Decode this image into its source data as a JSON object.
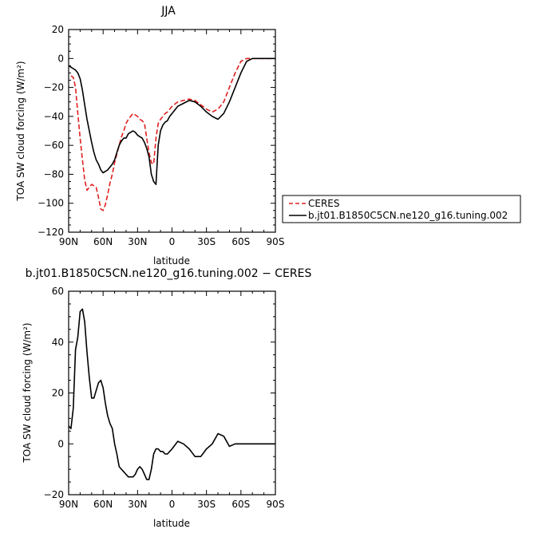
{
  "chart_data": [
    {
      "type": "line",
      "title": "JJA",
      "xlabel": "latitude",
      "ylabel": "TOA SW cloud forcing (W/m²)",
      "ylim": [
        -120,
        20
      ],
      "xlim": [
        90,
        -90
      ],
      "x_ticks": [
        90,
        60,
        30,
        0,
        -30,
        -60,
        -90
      ],
      "x_tick_labels": [
        "90N",
        "60N",
        "30N",
        "0",
        "30S",
        "60S",
        "90S"
      ],
      "y_ticks": [
        20,
        0,
        -20,
        -40,
        -60,
        -80,
        -100,
        -120
      ],
      "y_tick_labels": [
        "20",
        "0",
        "−20",
        "−40",
        "−60",
        "−80",
        "−100",
        "−120"
      ],
      "legend_placement": "outside-right",
      "series": [
        {
          "name": "CERES",
          "color": "#e02020",
          "dash": "dashed",
          "x": [
            88,
            86,
            84,
            82,
            80,
            78,
            76,
            74,
            72,
            70,
            68,
            66,
            64,
            62,
            60,
            58,
            56,
            54,
            52,
            50,
            48,
            46,
            44,
            42,
            40,
            38,
            36,
            34,
            32,
            30,
            28,
            26,
            24,
            22,
            20,
            18,
            16,
            14,
            12,
            10,
            8,
            6,
            4,
            2,
            0,
            -5,
            -10,
            -15,
            -20,
            -25,
            -30,
            -35,
            -40,
            -45,
            -50,
            -55,
            -60,
            -65,
            -70,
            -75,
            -80,
            -85,
            -90
          ],
          "y": [
            -12,
            -13,
            -20,
            -38,
            -55,
            -70,
            -84,
            -91,
            -89,
            -87,
            -88,
            -89,
            -96,
            -104,
            -105,
            -101,
            -94,
            -86,
            -80,
            -72,
            -66,
            -60,
            -54,
            -50,
            -45,
            -42,
            -40,
            -38,
            -39,
            -40,
            -42,
            -43,
            -45,
            -55,
            -65,
            -72,
            -73,
            -55,
            -45,
            -42,
            -40,
            -38,
            -37,
            -35,
            -33,
            -30,
            -29,
            -28,
            -29,
            -32,
            -35,
            -37,
            -35,
            -30,
            -20,
            -10,
            -2,
            0,
            0,
            0,
            0,
            0,
            0
          ]
        },
        {
          "name": "b.jt01.B1850C5CN.ne120_g16.tuning.002",
          "color": "#000000",
          "dash": "solid",
          "x": [
            90,
            88,
            86,
            84,
            82,
            80,
            78,
            76,
            74,
            72,
            70,
            68,
            66,
            64,
            62,
            60,
            58,
            56,
            54,
            52,
            50,
            48,
            46,
            44,
            42,
            40,
            38,
            36,
            34,
            32,
            30,
            28,
            26,
            24,
            22,
            20,
            18,
            16,
            14,
            12,
            10,
            8,
            6,
            4,
            2,
            0,
            -5,
            -10,
            -15,
            -20,
            -25,
            -30,
            -35,
            -40,
            -45,
            -50,
            -55,
            -60,
            -65,
            -70,
            -75,
            -80,
            -85,
            -90
          ],
          "y": [
            -5,
            -6,
            -7,
            -8,
            -10,
            -14,
            -22,
            -32,
            -42,
            -50,
            -58,
            -65,
            -70,
            -73,
            -77,
            -79,
            -78,
            -77,
            -75,
            -73,
            -70,
            -65,
            -60,
            -57,
            -55,
            -55,
            -52,
            -51,
            -50,
            -51,
            -53,
            -54,
            -55,
            -58,
            -62,
            -68,
            -80,
            -85,
            -87,
            -60,
            -50,
            -46,
            -44,
            -43,
            -40,
            -38,
            -33,
            -31,
            -29,
            -30,
            -33,
            -37,
            -40,
            -42,
            -38,
            -30,
            -20,
            -10,
            -2,
            0,
            0,
            0,
            0,
            0
          ]
        }
      ]
    },
    {
      "type": "line",
      "title": "b.jt01.B1850C5CN.ne120_g16.tuning.002 − CERES",
      "xlabel": "latitude",
      "ylabel": "TOA SW cloud forcing (W/m²)",
      "ylim": [
        -20,
        60
      ],
      "xlim": [
        90,
        -90
      ],
      "x_ticks": [
        90,
        60,
        30,
        0,
        -30,
        -60,
        -90
      ],
      "x_tick_labels": [
        "90N",
        "60N",
        "30N",
        "0",
        "30S",
        "60S",
        "90S"
      ],
      "y_ticks": [
        60,
        40,
        20,
        0,
        -20
      ],
      "y_tick_labels": [
        "60",
        "40",
        "20",
        "0",
        "−20"
      ],
      "series": [
        {
          "color": "#000000",
          "dash": "solid",
          "x": [
            90,
            88,
            86,
            84,
            82,
            80,
            78,
            76,
            74,
            72,
            70,
            68,
            66,
            64,
            62,
            60,
            58,
            56,
            54,
            52,
            50,
            48,
            46,
            44,
            42,
            40,
            38,
            36,
            34,
            32,
            30,
            28,
            26,
            24,
            22,
            20,
            18,
            16,
            14,
            12,
            10,
            8,
            6,
            4,
            2,
            0,
            -5,
            -10,
            -15,
            -20,
            -25,
            -30,
            -35,
            -40,
            -45,
            -50,
            -55,
            -60,
            -65,
            -70,
            -75,
            -80,
            -85,
            -90
          ],
          "y": [
            7,
            6,
            14,
            37,
            42,
            52,
            53,
            48,
            36,
            26,
            18,
            18,
            21,
            24,
            25,
            22,
            16,
            11,
            8,
            6,
            0,
            -4,
            -9,
            -10,
            -11,
            -12,
            -13,
            -13,
            -13,
            -12,
            -10,
            -9,
            -10,
            -12,
            -14,
            -14,
            -10,
            -4,
            -2,
            -2,
            -3,
            -3,
            -4,
            -4,
            -3,
            -2,
            1,
            0,
            -2,
            -5,
            -5,
            -2,
            0,
            4,
            3,
            -1,
            0,
            0,
            0,
            0,
            0,
            0,
            0,
            0
          ]
        }
      ]
    }
  ]
}
